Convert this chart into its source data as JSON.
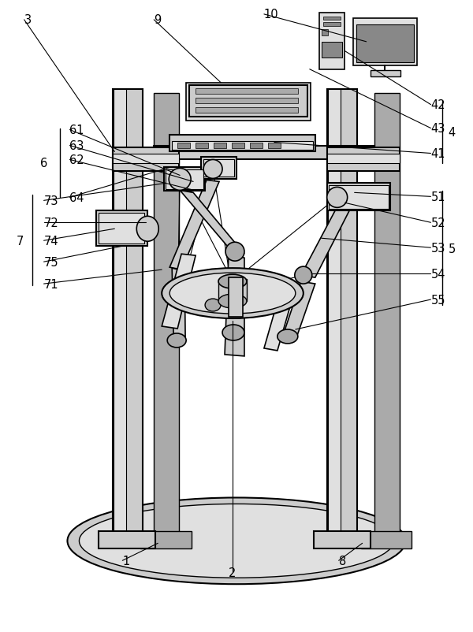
{
  "bg_color": "#ffffff",
  "lc": "#000000",
  "fig_width": 6.0,
  "fig_height": 8.03,
  "gray1": "#cccccc",
  "gray2": "#e0e0e0",
  "gray3": "#aaaaaa",
  "gray4": "#888888",
  "gray5": "#f0f0f0"
}
